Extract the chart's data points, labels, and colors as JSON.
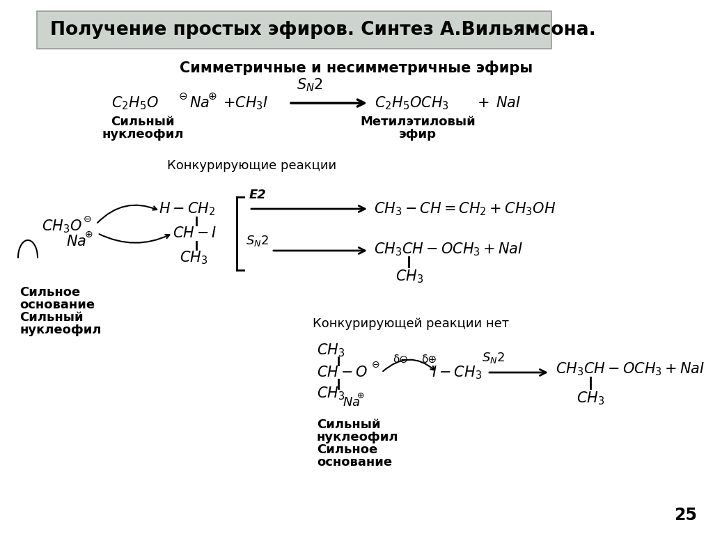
{
  "title": "Получение простых эфиров. Синтез А.Вильямсона.",
  "title_bg": "#cdd4cd",
  "subtitle": "Симметричные и несимметричные эфиры",
  "bg_color": "#ffffff",
  "page_number": "25"
}
